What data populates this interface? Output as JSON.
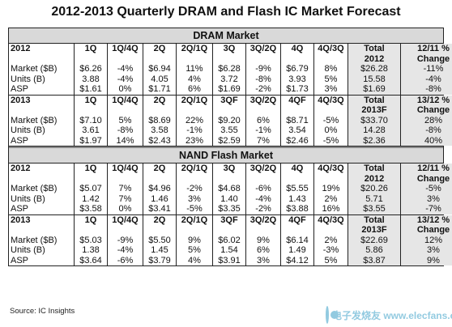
{
  "title": "2012-2013 Quarterly DRAM and Flash IC Market Forecast",
  "dram": {
    "section_title": "DRAM Market",
    "b2012": {
      "header": [
        "2012",
        "1Q",
        "1Q/4Q",
        "2Q",
        "2Q/1Q",
        "3Q",
        "3Q/2Q",
        "4Q",
        "4Q/3Q",
        "Total",
        "12/11 %"
      ],
      "header2": [
        "",
        "",
        "",
        "",
        "",
        "",
        "",
        "",
        "",
        "2012",
        "Change"
      ],
      "rows": [
        [
          "Market ($B)",
          "$6.26",
          "-4%",
          "$6.94",
          "11%",
          "$6.28",
          "-9%",
          "$6.79",
          "8%",
          "$26.28",
          "-11%"
        ],
        [
          "Units (B)",
          "3.88",
          "-4%",
          "4.05",
          "4%",
          "3.72",
          "-8%",
          "3.93",
          "5%",
          "15.58",
          "-4%"
        ],
        [
          "ASP",
          "$1.61",
          "0%",
          "$1.71",
          "6%",
          "$1.69",
          "-2%",
          "$1.73",
          "3%",
          "$1.69",
          "-8%"
        ]
      ]
    },
    "b2013": {
      "header": [
        "2013",
        "1Q",
        "1Q/4Q",
        "2Q",
        "2Q/1Q",
        "3QF",
        "3Q/2Q",
        "4QF",
        "4Q/3Q",
        "Total",
        "13/12 %"
      ],
      "header2": [
        "",
        "",
        "",
        "",
        "",
        "",
        "",
        "",
        "",
        "2013F",
        "Change"
      ],
      "rows": [
        [
          "Market ($B)",
          "$7.10",
          "5%",
          "$8.69",
          "22%",
          "$9.20",
          "6%",
          "$8.71",
          "-5%",
          "$33.70",
          "28%"
        ],
        [
          "Units (B)",
          "3.61",
          "-8%",
          "3.58",
          "-1%",
          "3.55",
          "-1%",
          "3.54",
          "0%",
          "14.28",
          "-8%"
        ],
        [
          "ASP",
          "$1.97",
          "14%",
          "$2.43",
          "23%",
          "$2.59",
          "7%",
          "$2.46",
          "-5%",
          "$2.36",
          "40%"
        ]
      ]
    }
  },
  "nand": {
    "section_title": "NAND Flash Market",
    "b2012": {
      "header": [
        "2012",
        "1Q",
        "1Q/4Q",
        "2Q",
        "2Q/1Q",
        "3Q",
        "3Q/2Q",
        "4Q",
        "4Q/3Q",
        "Total",
        "12/11 %"
      ],
      "header2": [
        "",
        "",
        "",
        "",
        "",
        "",
        "",
        "",
        "",
        "2012",
        "Change"
      ],
      "rows": [
        [
          "Market ($B)",
          "$5.07",
          "7%",
          "$4.96",
          "-2%",
          "$4.68",
          "-6%",
          "$5.55",
          "19%",
          "$20.26",
          "-5%"
        ],
        [
          "Units (B)",
          "1.42",
          "7%",
          "1.46",
          "3%",
          "1.40",
          "-4%",
          "1.43",
          "2%",
          "5.71",
          "3%"
        ],
        [
          "ASP",
          "$3.58",
          "0%",
          "$3.41",
          "-5%",
          "$3.35",
          "-2%",
          "$3.88",
          "16%",
          "$3.55",
          "-7%"
        ]
      ]
    },
    "b2013": {
      "header": [
        "2013",
        "1Q",
        "1Q/4Q",
        "2Q",
        "2Q/1Q",
        "3QF",
        "3Q/2Q",
        "4QF",
        "4Q/3Q",
        "Total",
        "13/12 %"
      ],
      "header2": [
        "",
        "",
        "",
        "",
        "",
        "",
        "",
        "",
        "",
        "2013F",
        "Change"
      ],
      "rows": [
        [
          "Market ($B)",
          "$5.03",
          "-9%",
          "$5.50",
          "9%",
          "$6.02",
          "9%",
          "$6.14",
          "2%",
          "$22.69",
          "12%"
        ],
        [
          "Units (B)",
          "1.38",
          "-4%",
          "1.45",
          "5%",
          "1.54",
          "6%",
          "1.49",
          "-3%",
          "5.86",
          "3%"
        ],
        [
          "ASP",
          "$3.64",
          "-6%",
          "$3.79",
          "4%",
          "$3.91",
          "3%",
          "$4.12",
          "5%",
          "$3.87",
          "9%"
        ]
      ]
    }
  },
  "source": "Source: IC Insights",
  "watermark": {
    "text": "电子发烧友 www.elecfans.com",
    "icon": "elecfans-logo-icon",
    "color": "#3aa0c8"
  }
}
